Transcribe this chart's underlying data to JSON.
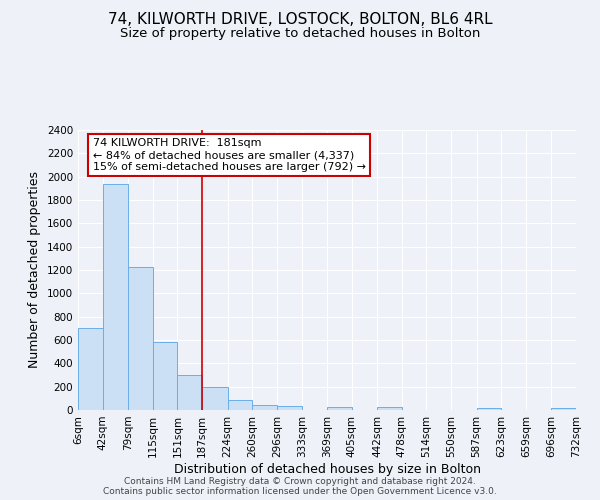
{
  "title": "74, KILWORTH DRIVE, LOSTOCK, BOLTON, BL6 4RL",
  "subtitle": "Size of property relative to detached houses in Bolton",
  "xlabel": "Distribution of detached houses by size in Bolton",
  "ylabel": "Number of detached properties",
  "bar_edges": [
    6,
    42,
    79,
    115,
    151,
    187,
    224,
    260,
    296,
    333,
    369,
    405,
    442,
    478,
    514,
    550,
    587,
    623,
    659,
    696,
    732
  ],
  "bar_heights": [
    700,
    1940,
    1230,
    580,
    300,
    200,
    85,
    45,
    35,
    0,
    30,
    0,
    25,
    0,
    0,
    0,
    20,
    0,
    0,
    15
  ],
  "bar_color": "#cce0f5",
  "bar_edge_color": "#6aaee8",
  "vline_x": 187,
  "vline_color": "#cc0000",
  "ann_line1": "74 KILWORTH DRIVE:  181sqm",
  "ann_line2": "← 84% of detached houses are smaller (4,337)",
  "ann_line3": "15% of semi-detached houses are larger (792) →",
  "ylim": [
    0,
    2400
  ],
  "yticks": [
    0,
    200,
    400,
    600,
    800,
    1000,
    1200,
    1400,
    1600,
    1800,
    2000,
    2200,
    2400
  ],
  "tick_labels": [
    "6sqm",
    "42sqm",
    "79sqm",
    "115sqm",
    "151sqm",
    "187sqm",
    "224sqm",
    "260sqm",
    "296sqm",
    "333sqm",
    "369sqm",
    "405sqm",
    "442sqm",
    "478sqm",
    "514sqm",
    "550sqm",
    "587sqm",
    "623sqm",
    "659sqm",
    "696sqm",
    "732sqm"
  ],
  "footer_line1": "Contains HM Land Registry data © Crown copyright and database right 2024.",
  "footer_line2": "Contains public sector information licensed under the Open Government Licence v3.0.",
  "background_color": "#eef2f8",
  "plot_bg_color": "#eef2f8",
  "grid_color": "#ffffff",
  "title_fontsize": 11,
  "subtitle_fontsize": 9.5,
  "axis_label_fontsize": 9,
  "tick_fontsize": 7.5,
  "footer_fontsize": 6.5,
  "ann_fontsize": 8
}
